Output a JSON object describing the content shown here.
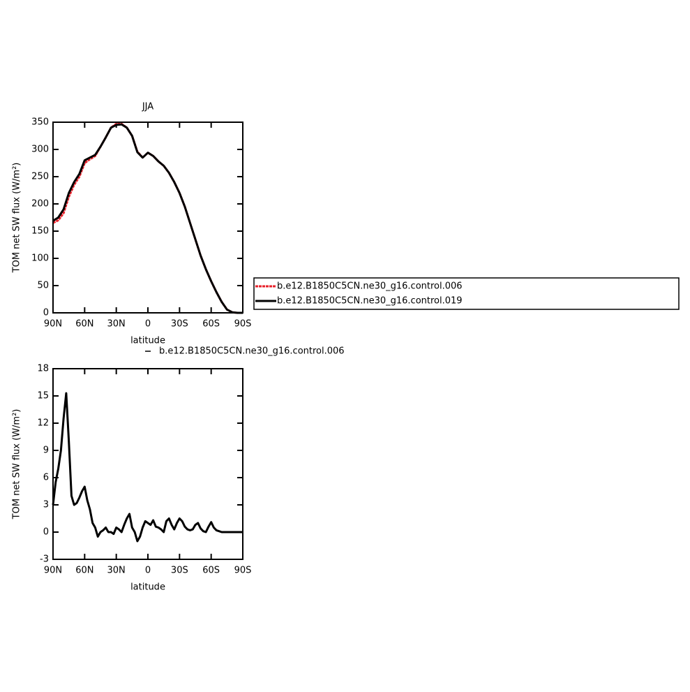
{
  "chart_data": [
    {
      "type": "line",
      "title": "JJA",
      "xlabel": "latitude",
      "ylabel": "TOM net SW flux (W/m²)",
      "x": [
        90,
        85,
        80,
        75,
        70,
        65,
        60,
        55,
        50,
        45,
        40,
        35,
        30,
        25,
        20,
        15,
        10,
        5,
        0,
        -5,
        -10,
        -15,
        -20,
        -25,
        -30,
        -35,
        -40,
        -45,
        -50,
        -55,
        -60,
        -65,
        -70,
        -75,
        -80,
        -85,
        -90
      ],
      "series": [
        {
          "name": "b.e12.B1850C5CN.ne30_g16.control.006",
          "color": "#e8202a",
          "dash": true,
          "values": [
            165,
            170,
            183,
            213,
            235,
            250,
            275,
            282,
            288,
            305,
            322,
            340,
            347,
            347,
            340,
            325,
            296,
            285,
            294,
            288,
            278,
            270,
            257,
            240,
            220,
            195,
            165,
            135,
            105,
            80,
            58,
            38,
            20,
            6,
            1,
            0,
            0
          ]
        },
        {
          "name": "b.e12.B1850C5CN.ne30_g16.control.019",
          "color": "#000000",
          "dash": false,
          "values": [
            169,
            175,
            190,
            220,
            240,
            255,
            280,
            285,
            290,
            305,
            322,
            340,
            345,
            346,
            340,
            325,
            295,
            285,
            294,
            288,
            278,
            270,
            257,
            240,
            220,
            195,
            165,
            135,
            105,
            80,
            58,
            38,
            20,
            6,
            1,
            0,
            0
          ]
        }
      ],
      "xlim": [
        90,
        -90
      ],
      "ylim": [
        0,
        350
      ],
      "xticks": [
        {
          "value": 90,
          "label": "90N"
        },
        {
          "value": 60,
          "label": "60N"
        },
        {
          "value": 30,
          "label": "30N"
        },
        0,
        {
          "value": -30,
          "label": "30S"
        },
        {
          "value": -60,
          "label": "60S"
        },
        {
          "value": -90,
          "label": "90S"
        }
      ],
      "yticks": [
        0,
        50,
        100,
        150,
        200,
        250,
        300,
        350
      ],
      "legend": "right"
    },
    {
      "type": "line",
      "xlabel": "latitude",
      "ylabel": "TOM net SW flux (W/m²)",
      "x": [
        90,
        87.5,
        85,
        82.5,
        80,
        77.5,
        75,
        72.5,
        70,
        67.5,
        65,
        62.5,
        60,
        57.5,
        55,
        52.5,
        50,
        47.5,
        45,
        42.5,
        40,
        37.5,
        35,
        32.5,
        30,
        27.5,
        25,
        22.5,
        20,
        17.5,
        15,
        12.5,
        10,
        7.5,
        5,
        2.5,
        0,
        -2.5,
        -5,
        -7.5,
        -10,
        -12.5,
        -15,
        -17.5,
        -20,
        -22.5,
        -25,
        -27.5,
        -30,
        -32.5,
        -35,
        -37.5,
        -40,
        -42.5,
        -45,
        -47.5,
        -50,
        -52.5,
        -55,
        -57.5,
        -60,
        -62.5,
        -65,
        -67.5,
        -70,
        -75,
        -80,
        -85,
        -90
      ],
      "series": [
        {
          "name": "b.e12.B1850C5CN.ne30_g16.control.006",
          "color": "#000000",
          "dash": false,
          "values": [
            3,
            5.5,
            7,
            9,
            12.5,
            15.3,
            10,
            4,
            3,
            3.2,
            3.8,
            4.5,
            5,
            3.5,
            2.5,
            1,
            0.5,
            -0.5,
            0,
            0.2,
            0.5,
            0,
            0,
            -0.2,
            0.5,
            0.3,
            0,
            0.8,
            1.5,
            2,
            0.5,
            0,
            -1,
            -0.5,
            0.5,
            1.2,
            1,
            0.8,
            1.3,
            0.6,
            0.5,
            0.3,
            0,
            1.2,
            1.5,
            0.8,
            0.3,
            1,
            1.5,
            1.2,
            0.6,
            0.3,
            0.2,
            0.3,
            0.8,
            1,
            0.4,
            0.1,
            0,
            0.6,
            1.1,
            0.5,
            0.2,
            0.1,
            0,
            0,
            0,
            0,
            0
          ]
        }
      ],
      "xlim": [
        90,
        -90
      ],
      "ylim": [
        -3,
        18
      ],
      "xticks": [
        {
          "value": 90,
          "label": "90N"
        },
        {
          "value": 60,
          "label": "60N"
        },
        {
          "value": 30,
          "label": "30N"
        },
        0,
        {
          "value": -30,
          "label": "30S"
        },
        {
          "value": -60,
          "label": "60S"
        },
        {
          "value": -90,
          "label": "90S"
        }
      ],
      "yticks": [
        -3,
        0,
        3,
        6,
        9,
        12,
        15,
        18
      ],
      "legend": "top"
    }
  ]
}
